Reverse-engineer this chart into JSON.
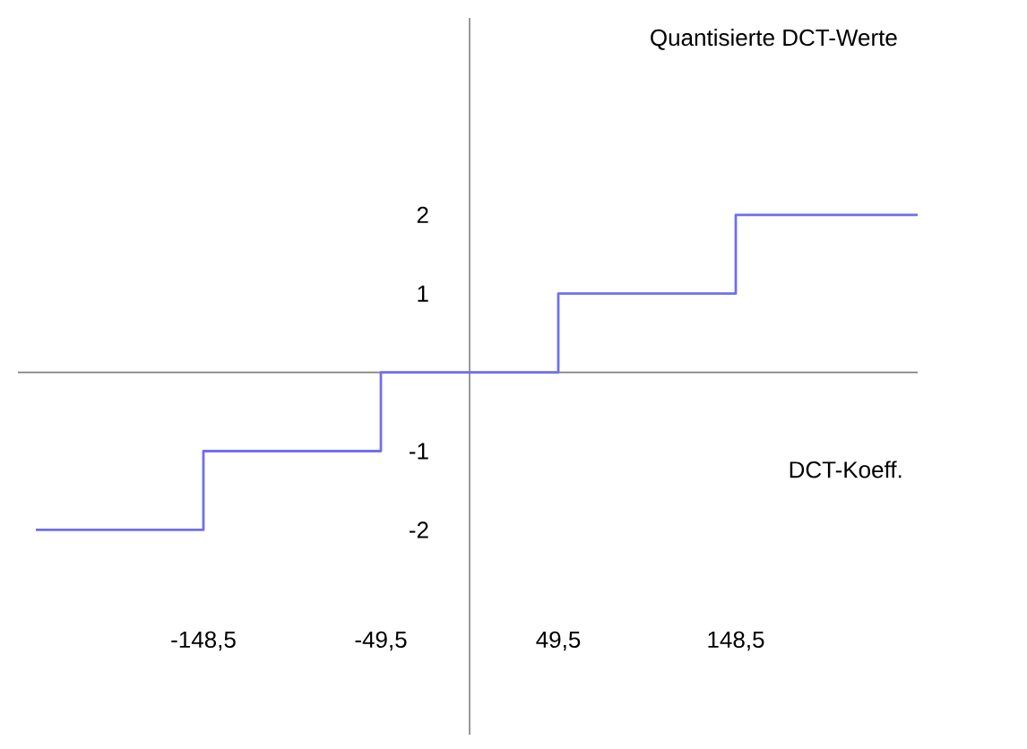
{
  "chart_data": {
    "type": "step",
    "xlabel": "DCT-Koeff.",
    "ylabel": "Quantisierte DCT-Werte",
    "x": [
      -242,
      -148.5,
      -49.5,
      49.5,
      148.5,
      250
    ],
    "series": [
      {
        "color": "#6f6ff0",
        "values": [
          -2,
          -1,
          0,
          1,
          2,
          2
        ]
      }
    ],
    "xlim": [
      -252,
      250
    ],
    "ylim": [
      -4.6,
      4.5
    ],
    "xticks": [
      {
        "value": -148.5,
        "label": "-148,5"
      },
      {
        "value": -49.5,
        "label": "-49,5"
      },
      {
        "value": 49.5,
        "label": "49,5"
      },
      {
        "value": 148.5,
        "label": "148,5"
      }
    ],
    "yticks": [
      -2,
      -1,
      1,
      2
    ]
  }
}
